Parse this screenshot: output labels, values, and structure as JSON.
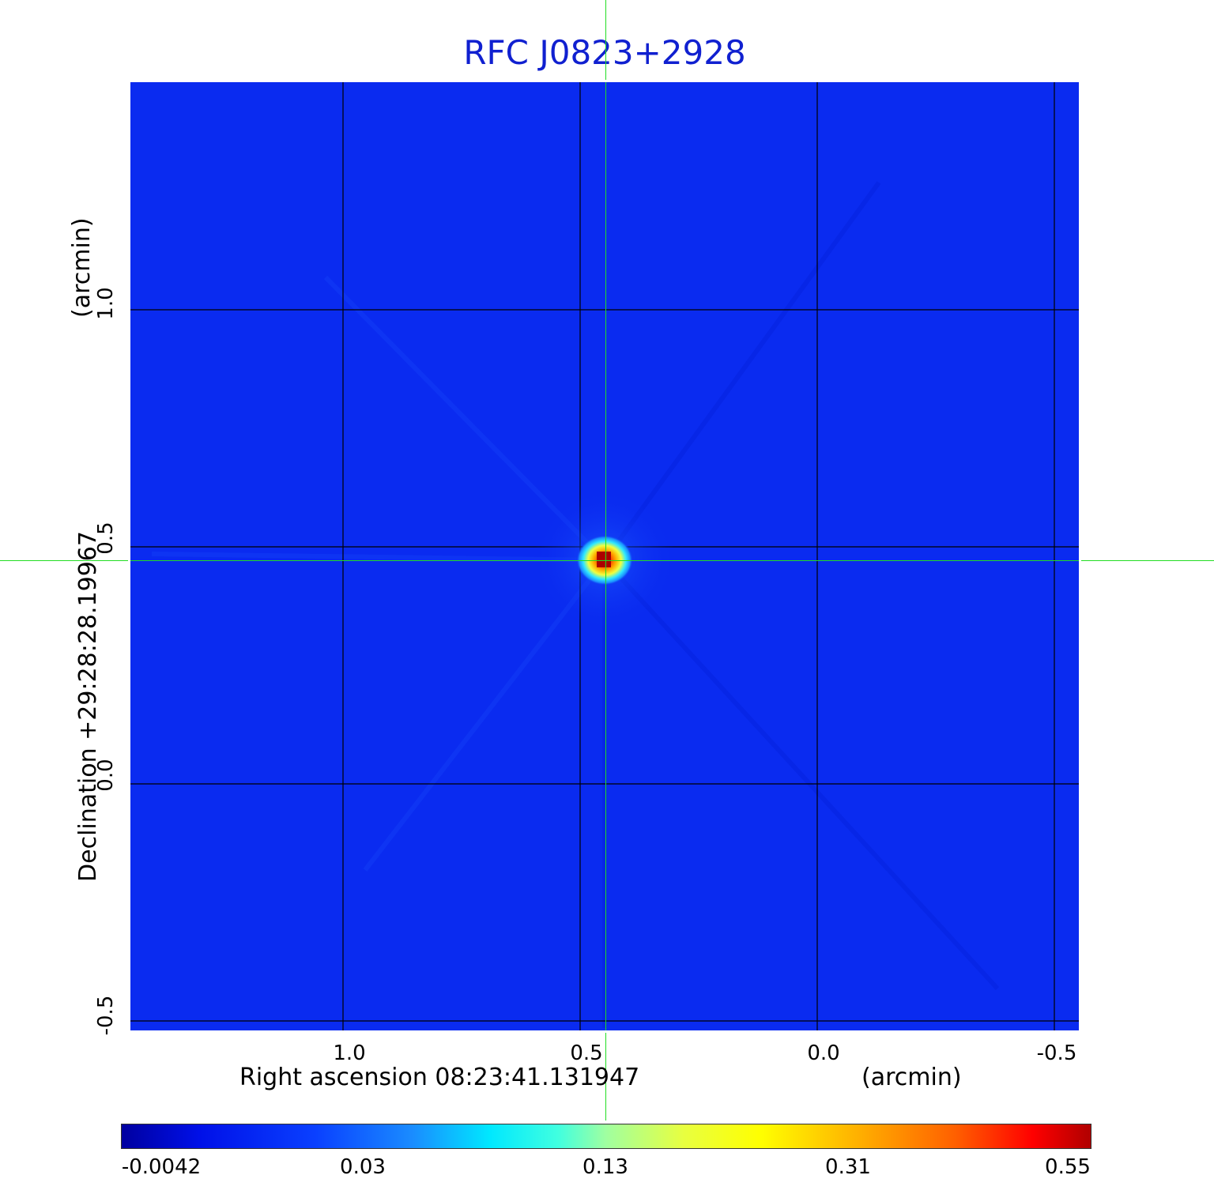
{
  "title": "RFC J0823+2928",
  "colormap": {
    "style": "jet",
    "background": "#0a2bf0",
    "peak_colors": [
      "#ffff00",
      "#ff8000",
      "#cc0000"
    ]
  },
  "axes": {
    "x_label": "Right ascension  08:23:41.131947",
    "x_unit": "(arcmin)",
    "y_label": "Declination  +29:28:28.19967",
    "y_unit": "(arcmin)",
    "x_ticks": [
      "1.0",
      "0.5",
      "0.0",
      "-0.5"
    ],
    "y_ticks": [
      "1.0",
      "0.5",
      "0.0",
      "-0.5"
    ]
  },
  "grid": {
    "color": "#000000",
    "shown": true
  },
  "crosshair": {
    "color": "#22dd22",
    "shown": true
  },
  "colorbar": {
    "ticks": [
      "-0.0042",
      "0.03",
      "0.13",
      "0.31",
      "0.55"
    ]
  }
}
